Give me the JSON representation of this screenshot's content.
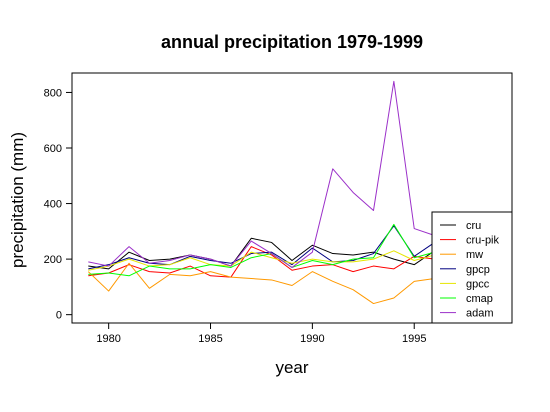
{
  "chart_data": {
    "type": "line",
    "title": "annual precipitation 1979-1999",
    "xlabel": "year",
    "ylabel": "precipitation (mm)",
    "xlim": [
      1978.2,
      1999.8
    ],
    "ylim": [
      -30,
      870
    ],
    "xticks": [
      1980,
      1985,
      1990,
      1995
    ],
    "yticks": [
      0,
      200,
      400,
      600,
      800
    ],
    "legend_position": "bottom-right",
    "x": [
      1979,
      1980,
      1981,
      1982,
      1983,
      1984,
      1985,
      1986,
      1987,
      1988,
      1989,
      1990,
      1991,
      1992,
      1993,
      1994,
      1995,
      1996,
      1997,
      1998,
      1999
    ],
    "series": [
      {
        "name": "cru",
        "color": "#000000",
        "values": [
          175,
          165,
          225,
          195,
          200,
          215,
          200,
          175,
          275,
          260,
          195,
          250,
          220,
          215,
          225,
          200,
          180,
          230,
          220,
          210,
          225
        ]
      },
      {
        "name": "cru-pik",
        "color": "#ff0000",
        "values": [
          140,
          150,
          180,
          155,
          150,
          175,
          140,
          135,
          245,
          215,
          160,
          175,
          180,
          155,
          175,
          165,
          210,
          200,
          190,
          185,
          195
        ]
      },
      {
        "name": "mw",
        "color": "#ff9900",
        "values": [
          155,
          85,
          185,
          95,
          145,
          140,
          155,
          135,
          130,
          125,
          105,
          155,
          120,
          90,
          40,
          60,
          120,
          130,
          120,
          115,
          125
        ]
      },
      {
        "name": "gpcp",
        "color": "#000080",
        "values": [
          165,
          180,
          205,
          185,
          180,
          210,
          195,
          185,
          220,
          225,
          180,
          240,
          190,
          195,
          220,
          320,
          210,
          260,
          240,
          235,
          240
        ]
      },
      {
        "name": "gpcc",
        "color": "#e6e600",
        "values": [
          160,
          175,
          200,
          175,
          180,
          205,
          180,
          175,
          225,
          205,
          185,
          200,
          190,
          190,
          200,
          230,
          195,
          215,
          210,
          205,
          210
        ]
      },
      {
        "name": "cmap",
        "color": "#00ff00",
        "values": [
          145,
          150,
          140,
          175,
          165,
          165,
          180,
          170,
          205,
          220,
          170,
          195,
          180,
          200,
          205,
          325,
          205,
          225,
          215,
          210,
          215
        ]
      },
      {
        "name": "adam",
        "color": "#9b30c9",
        "values": [
          190,
          175,
          245,
          185,
          195,
          215,
          200,
          175,
          265,
          220,
          170,
          225,
          525,
          440,
          375,
          840,
          310,
          285,
          270,
          255,
          260
        ]
      }
    ]
  }
}
